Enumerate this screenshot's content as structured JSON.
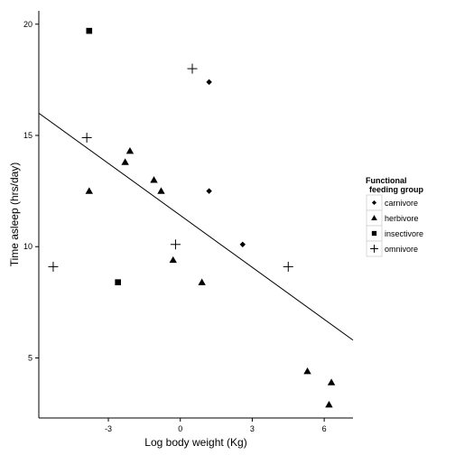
{
  "chart_data": {
    "type": "scatter",
    "xlabel": "Log body weight (Kg)",
    "ylabel": "Time asleep (hrs/day)",
    "xlim": [
      -5.9,
      7.2
    ],
    "ylim": [
      2.3,
      20.6
    ],
    "x_ticks": [
      -3,
      0,
      3,
      6
    ],
    "y_ticks": [
      5,
      10,
      15,
      20
    ],
    "x_tick_labels": [
      "-3",
      "0",
      "3",
      "6"
    ],
    "y_tick_labels": [
      "5",
      "10",
      "15",
      "20"
    ],
    "grid": false,
    "legend": {
      "title_lines": [
        "Functional",
        "feeding group"
      ],
      "placement": "right"
    },
    "series": [
      {
        "name": "carnivore",
        "marker": "diamond",
        "x": [
          1.2,
          1.2,
          2.6
        ],
        "y": [
          17.4,
          12.5,
          10.1
        ]
      },
      {
        "name": "herbivore",
        "marker": "triangle",
        "x": [
          -3.8,
          -2.3,
          -2.1,
          -1.1,
          -0.8,
          -0.3,
          0.9,
          5.3,
          6.3,
          6.2
        ],
        "y": [
          12.5,
          13.8,
          14.3,
          13.0,
          12.5,
          9.4,
          8.4,
          4.4,
          3.9,
          2.9
        ]
      },
      {
        "name": "insectivore",
        "marker": "square",
        "x": [
          -3.8,
          -2.6
        ],
        "y": [
          19.7,
          8.4
        ]
      },
      {
        "name": "omnivore",
        "marker": "plus",
        "x": [
          0.5,
          -3.9,
          -0.2,
          -5.3,
          4.5
        ],
        "y": [
          18.0,
          14.9,
          10.1,
          9.1,
          9.1
        ]
      }
    ],
    "trend_line": {
      "x": [
        -5.9,
        7.2
      ],
      "y": [
        16.0,
        5.8
      ]
    }
  }
}
